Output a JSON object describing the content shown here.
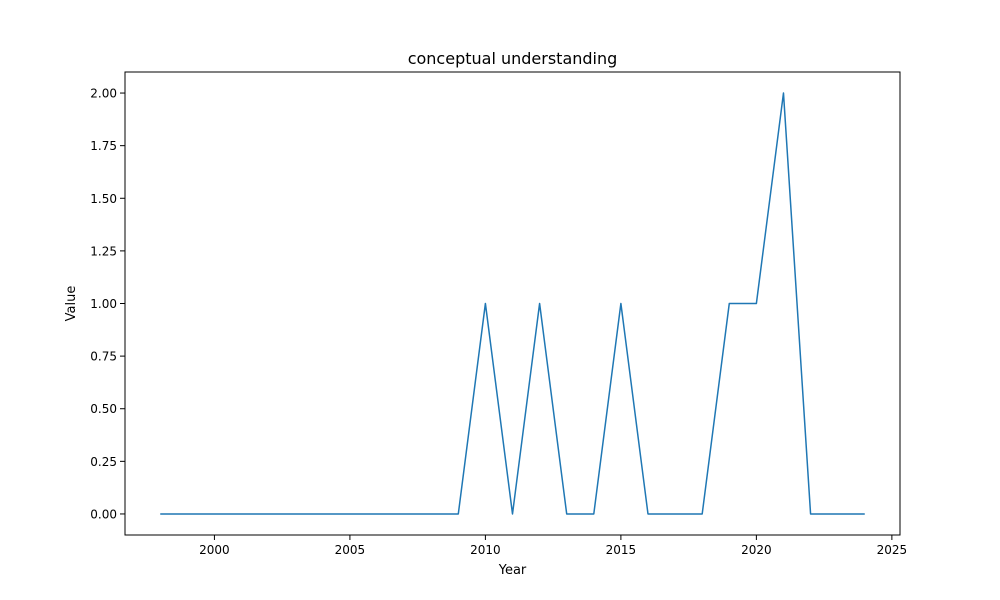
{
  "chart_data": {
    "type": "line",
    "title": "conceptual understanding",
    "xlabel": "Year",
    "ylabel": "Value",
    "xlim": [
      1996.7,
      2025.3
    ],
    "ylim": [
      -0.1,
      2.1
    ],
    "xticks": [
      2000,
      2005,
      2010,
      2015,
      2020,
      2025
    ],
    "yticks": [
      0.0,
      0.25,
      0.5,
      0.75,
      1.0,
      1.25,
      1.5,
      1.75,
      2.0
    ],
    "xtick_labels": [
      "2000",
      "2005",
      "2010",
      "2015",
      "2020",
      "2025"
    ],
    "ytick_labels": [
      "0.00",
      "0.25",
      "0.50",
      "0.75",
      "1.00",
      "1.25",
      "1.50",
      "1.75",
      "2.00"
    ],
    "grid": false,
    "series": [
      {
        "color": "#1f77b4",
        "x": [
          1998,
          1999,
          2000,
          2001,
          2002,
          2003,
          2004,
          2005,
          2006,
          2007,
          2008,
          2009,
          2010,
          2011,
          2012,
          2013,
          2014,
          2015,
          2016,
          2017,
          2018,
          2019,
          2020,
          2021,
          2022,
          2023,
          2024
        ],
        "y": [
          0,
          0,
          0,
          0,
          0,
          0,
          0,
          0,
          0,
          0,
          0,
          0,
          1,
          0,
          1,
          0,
          0,
          1,
          0,
          0,
          0,
          1,
          1,
          2,
          0,
          0,
          0
        ]
      }
    ]
  }
}
